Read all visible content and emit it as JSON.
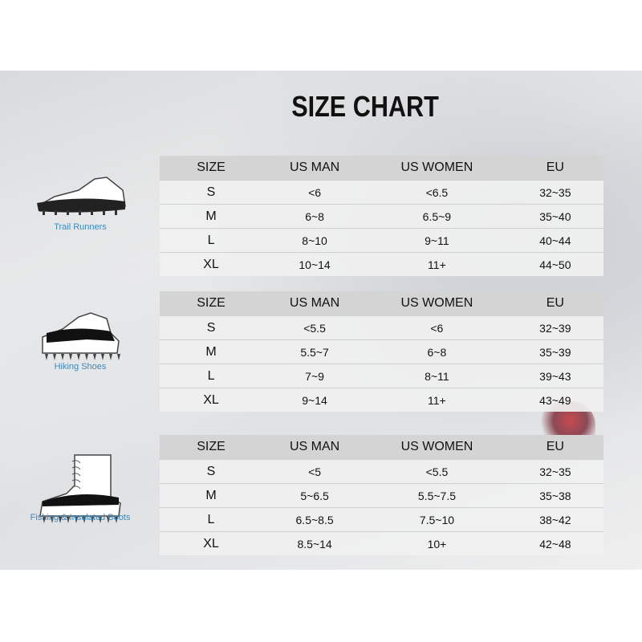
{
  "title": "SIZE CHART",
  "headers": [
    "SIZE",
    "US MAN",
    "US WOMEN",
    "EU"
  ],
  "tables": [
    {
      "label": "Trail Runners",
      "icon": "trail-runner-shoe-icon",
      "rows": [
        [
          "S",
          "<6",
          "<6.5",
          "32~35"
        ],
        [
          "M",
          "6~8",
          "6.5~9",
          "35~40"
        ],
        [
          "L",
          "8~10",
          "9~11",
          "40~44"
        ],
        [
          "XL",
          "10~14",
          "11+",
          "44~50"
        ]
      ]
    },
    {
      "label": "Hiking Shoes",
      "icon": "hiking-shoe-icon",
      "rows": [
        [
          "S",
          "<5.5",
          "<6",
          "32~39"
        ],
        [
          "M",
          "5.5~7",
          "6~8",
          "35~39"
        ],
        [
          "L",
          "7~9",
          "8~11",
          "39~43"
        ],
        [
          "XL",
          "9~14",
          "11+",
          "43~49"
        ]
      ]
    },
    {
      "label": "Fishing & Insulated Boots",
      "icon": "boot-icon",
      "rows": [
        [
          "S",
          "<5",
          "<5.5",
          "32~35"
        ],
        [
          "M",
          "5~6.5",
          "5.5~7.5",
          "35~38"
        ],
        [
          "L",
          "6.5~8.5",
          "7.5~10",
          "38~42"
        ],
        [
          "XL",
          "8.5~14",
          "10+",
          "42~48"
        ]
      ]
    }
  ],
  "colors": {
    "label": "#3a8ac0",
    "header_bg": "#d4d4d4"
  }
}
